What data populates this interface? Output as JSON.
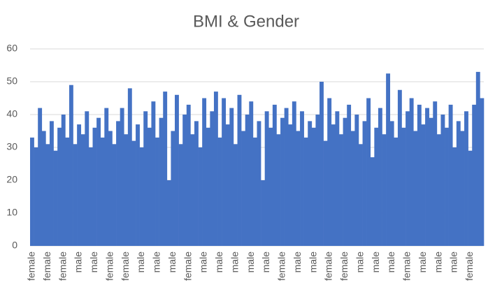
{
  "chart_data": {
    "type": "bar",
    "title": "BMI & Gender",
    "categories": [
      "female",
      null,
      null,
      null,
      "female",
      null,
      null,
      null,
      "female",
      null,
      null,
      null,
      "male",
      null,
      null,
      null,
      "male",
      null,
      null,
      null,
      "female",
      null,
      null,
      null,
      "female",
      null,
      null,
      null,
      "male",
      null,
      null,
      null,
      "male",
      null,
      null,
      null,
      "male",
      null,
      null,
      null,
      "female",
      null,
      null,
      null,
      "male",
      null,
      null,
      null,
      "male",
      null,
      null,
      null,
      "male",
      null,
      null,
      null,
      "male",
      null,
      null,
      null,
      "male",
      null,
      null,
      null,
      "female",
      null,
      null,
      null,
      "male",
      null,
      null,
      null,
      "male",
      null,
      null,
      null,
      "female",
      null,
      null,
      null,
      "female",
      null,
      null,
      null,
      "male",
      null,
      null,
      null,
      "male",
      null,
      null,
      null,
      "male",
      null,
      null,
      null,
      "female",
      null,
      null,
      null,
      "male",
      null,
      null,
      null,
      "male",
      null,
      null,
      null,
      "male",
      null,
      null,
      null,
      "female",
      null,
      null,
      null
    ],
    "values": [
      33,
      30,
      42,
      35,
      31,
      38,
      29,
      36,
      40,
      33,
      49,
      31,
      37,
      34,
      41,
      30,
      36,
      39,
      33,
      42,
      35,
      31,
      38,
      42,
      34,
      48,
      32,
      37,
      30,
      41,
      36,
      44,
      33,
      39,
      47,
      20,
      35,
      46,
      31,
      40,
      43,
      34,
      38,
      30,
      45,
      36,
      41,
      47,
      33,
      45,
      37,
      42,
      31,
      46,
      35,
      40,
      44,
      33,
      38,
      20,
      41,
      36,
      43,
      34,
      39,
      42,
      37,
      44,
      35,
      41,
      33,
      38,
      36,
      40,
      50,
      32,
      45,
      37,
      41,
      34,
      39,
      43,
      35,
      40,
      31,
      38,
      45,
      27,
      36,
      42,
      34,
      52.5,
      38,
      33,
      47.5,
      36,
      41,
      45,
      35,
      43,
      37,
      42,
      39,
      44,
      34,
      40,
      36,
      43,
      30,
      38,
      35,
      41,
      29,
      43,
      53,
      45
    ],
    "color": "#4472c4",
    "ylim": [
      0,
      60
    ],
    "yticks": [
      0,
      10,
      20,
      30,
      40,
      50,
      60
    ],
    "grid": true
  }
}
